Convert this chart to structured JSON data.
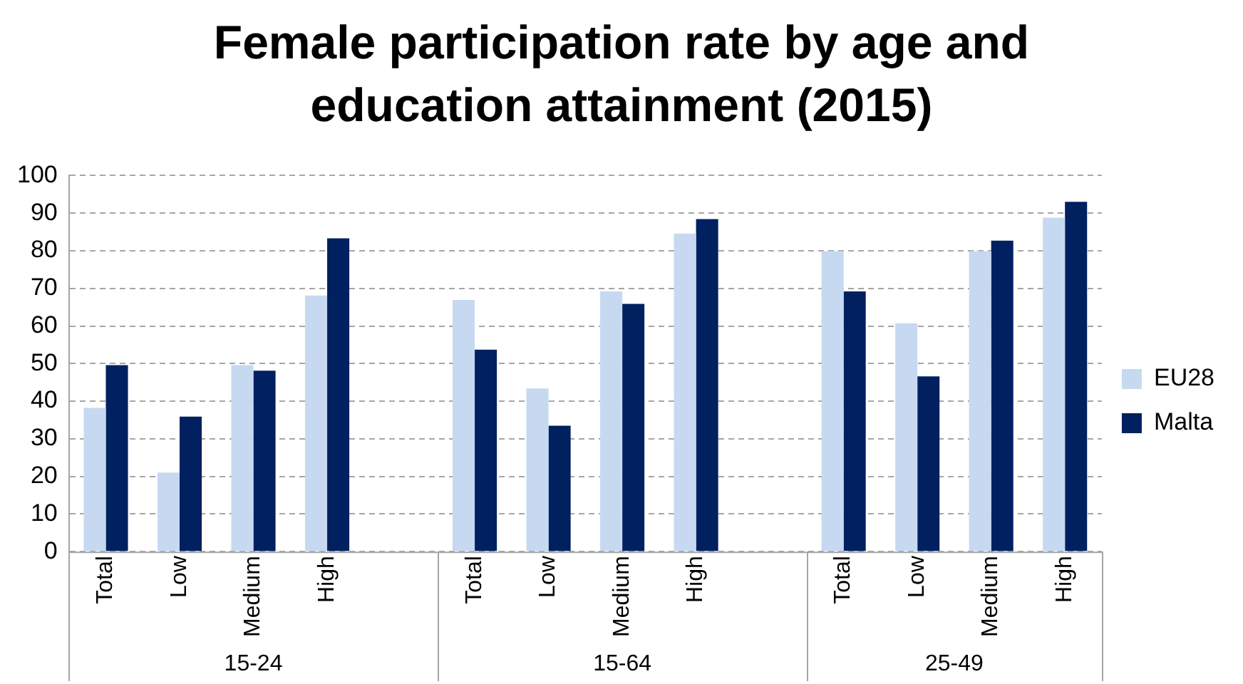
{
  "chart_data": {
    "type": "bar",
    "title": "Female participation rate by age and education attainment (2015)",
    "categories": [
      "Total",
      "Low",
      "Medium",
      "High",
      null,
      "Total",
      "Low",
      "Medium",
      "High",
      null,
      "Total",
      "Low",
      "Medium",
      "High"
    ],
    "series": [
      {
        "name": "EU28",
        "color": "#c6d9f1",
        "values": [
          38.2,
          21,
          49.6,
          68.1,
          null,
          66.9,
          43.4,
          69.2,
          84.6,
          null,
          79.9,
          60.7,
          79.9,
          88.8
        ]
      },
      {
        "name": "Malta",
        "color": "#002060",
        "values": [
          49.6,
          35.9,
          48.1,
          83.3,
          null,
          53.7,
          33.5,
          65.9,
          88.4,
          null,
          69.2,
          46.6,
          82.7,
          93
        ]
      }
    ],
    "annotations": [
      "15-24",
      "15-64",
      "25-49"
    ],
    "ylim": [
      0,
      100
    ],
    "yticks": [
      0,
      10,
      20,
      30,
      40,
      50,
      60,
      70,
      80,
      90,
      100
    ],
    "grid": "y",
    "legend": "right"
  }
}
